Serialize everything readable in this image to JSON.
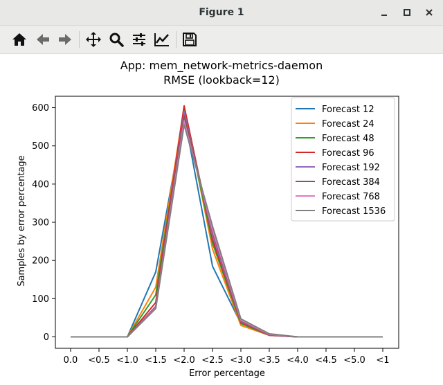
{
  "window": {
    "title": "Figure 1"
  },
  "toolbar": {
    "tools": [
      {
        "icon": "home-icon"
      },
      {
        "icon": "back-arrow-icon"
      },
      {
        "icon": "forward-arrow-icon"
      },
      {
        "icon": "pan-move-icon"
      },
      {
        "icon": "zoom-magnifier-icon"
      },
      {
        "icon": "configure-subplots-icon"
      },
      {
        "icon": "edit-axis-icon"
      },
      {
        "icon": "save-floppy-icon"
      }
    ]
  },
  "chart_data": {
    "type": "line",
    "title": "App: mem_network-metrics-daemon",
    "subtitle": "RMSE (lookback=12)",
    "xlabel": "Error percentage",
    "ylabel": "Samples by error percentage",
    "categories": [
      "0.0",
      "<0.5",
      "<1.0",
      "<1.5",
      "<2.0",
      "<2.5",
      "<3.0",
      "<3.5",
      "<4.0",
      "<4.5",
      "<5.0",
      "<1"
    ],
    "ylim": [
      -30,
      630
    ],
    "yticks": [
      0,
      100,
      200,
      300,
      400,
      500,
      600
    ],
    "grid": false,
    "legend_position": "top-right",
    "series": [
      {
        "name": "Forecast 12",
        "color": "#1f77b4",
        "values": [
          0,
          0,
          0,
          170,
          580,
          185,
          35,
          5,
          0,
          0,
          0,
          0
        ]
      },
      {
        "name": "Forecast 24",
        "color": "#ff7f0e",
        "values": [
          0,
          0,
          0,
          130,
          603,
          230,
          30,
          4,
          0,
          0,
          0,
          0
        ]
      },
      {
        "name": "Forecast 48",
        "color": "#2ca02c",
        "values": [
          0,
          0,
          0,
          110,
          595,
          245,
          35,
          4,
          0,
          0,
          0,
          0
        ]
      },
      {
        "name": "Forecast 96",
        "color": "#d62728",
        "values": [
          0,
          0,
          0,
          90,
          605,
          255,
          38,
          4,
          0,
          0,
          0,
          0
        ]
      },
      {
        "name": "Forecast 192",
        "color": "#9467bd",
        "values": [
          0,
          0,
          0,
          80,
          590,
          265,
          40,
          5,
          0,
          0,
          0,
          0
        ]
      },
      {
        "name": "Forecast 384",
        "color": "#8c564b",
        "values": [
          0,
          0,
          0,
          78,
          580,
          275,
          42,
          6,
          0,
          0,
          0,
          0
        ]
      },
      {
        "name": "Forecast 768",
        "color": "#e377c2",
        "values": [
          0,
          0,
          0,
          76,
          565,
          280,
          44,
          7,
          0,
          0,
          0,
          0
        ]
      },
      {
        "name": "Forecast 1536",
        "color": "#7f7f7f",
        "values": [
          0,
          0,
          0,
          74,
          555,
          290,
          47,
          8,
          0,
          0,
          0,
          0
        ]
      }
    ]
  }
}
